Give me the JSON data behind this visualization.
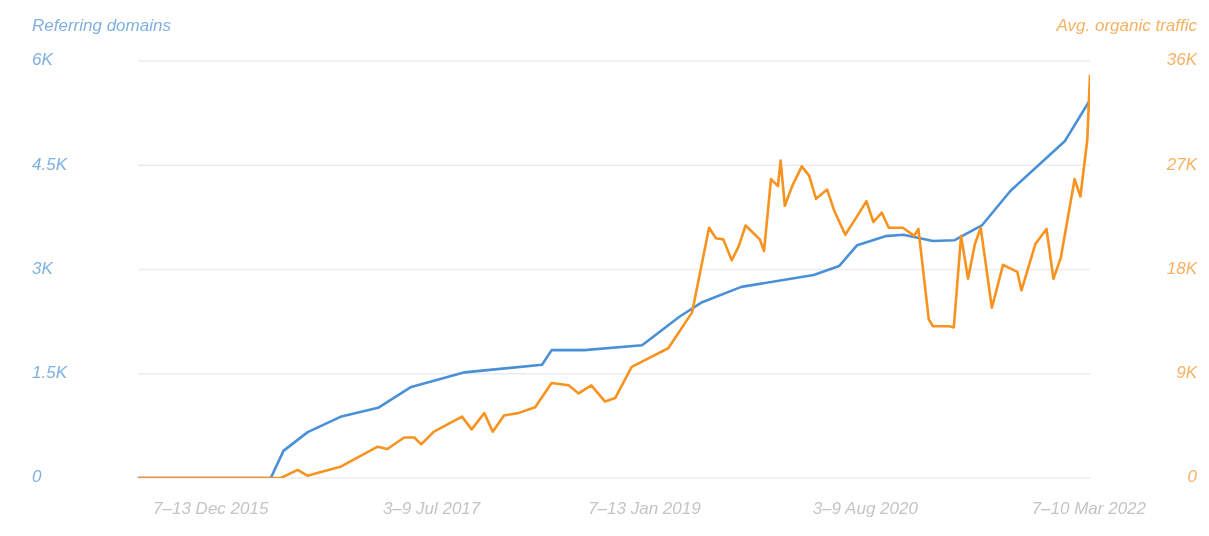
{
  "chart_data": {
    "type": "line",
    "ylabel": "Referring domains",
    "y2label": "Avg. organic traffic",
    "xlim": [
      "2015-06-01",
      "2022-03-10"
    ],
    "xticks": [
      {
        "value": "2015-12-07",
        "label": "7–13 Dec 2015"
      },
      {
        "value": "2017-07-03",
        "label": "3–9 Jul 2017"
      },
      {
        "value": "2019-01-07",
        "label": "7–13 Jan 2019"
      },
      {
        "value": "2020-08-03",
        "label": "3–9 Aug 2020"
      },
      {
        "value": "2022-03-07",
        "label": "7–10 Mar 2022"
      }
    ],
    "ylim": [
      0,
      6000
    ],
    "yticks": [
      0,
      {
        "value": 1500,
        "label": "1.5K"
      },
      {
        "value": 3000,
        "label": "3K"
      },
      {
        "value": 4500,
        "label": "4.5K"
      },
      {
        "value": 6000,
        "label": "6K"
      }
    ],
    "y2lim": [
      0,
      36000
    ],
    "y2ticks": [
      0,
      {
        "value": 9000,
        "label": "9K"
      },
      {
        "value": 18000,
        "label": "18K"
      },
      {
        "value": 27000,
        "label": "27K"
      },
      {
        "value": 36000,
        "label": "36K"
      }
    ],
    "grid": "y",
    "marker": "none",
    "line_style": "solid",
    "series": [
      {
        "color": "#4a90d9",
        "x": [
          "2015-06-01",
          "2016-05-11",
          "2016-06-13",
          "2016-08-15",
          "2016-11-08",
          "2017-02-14",
          "2017-05-11",
          "2017-09-27",
          "2018-04-16",
          "2018-05-11",
          "2018-08-04",
          "2019-01-01",
          "2019-04-08",
          "2019-06-06",
          "2019-09-16",
          "2020-03-22",
          "2020-05-27",
          "2020-07-13",
          "2020-09-24",
          "2020-11-10",
          "2021-01-26",
          "2021-03-22",
          "2021-06-03",
          "2021-08-15",
          "2022-01-04",
          "2022-03-10"
        ],
        "values": [
          0,
          0,
          390,
          660,
          880,
          1010,
          1310,
          1520,
          1630,
          1840,
          1840,
          1910,
          2320,
          2530,
          2750,
          2920,
          3050,
          3350,
          3480,
          3500,
          3410,
          3420,
          3640,
          4130,
          4850,
          5440
        ]
      },
      {
        "color": "#f7931e",
        "axis": "y2",
        "x": [
          "2015-06-01",
          "2016-06-06",
          "2016-07-20",
          "2016-08-14",
          "2016-11-10",
          "2017-02-13",
          "2017-03-10",
          "2017-04-23",
          "2017-05-19",
          "2017-06-06",
          "2017-07-09",
          "2017-09-20",
          "2017-10-15",
          "2017-11-17",
          "2017-12-09",
          "2018-01-07",
          "2018-02-13",
          "2018-03-29",
          "2018-05-11",
          "2018-06-24",
          "2018-07-20",
          "2018-08-22",
          "2018-09-27",
          "2018-10-23",
          "2018-12-05",
          "2019-03-10",
          "2019-05-11",
          "2019-05-26",
          "2019-06-24",
          "2019-07-12",
          "2019-07-31",
          "2019-08-22",
          "2019-09-09",
          "2019-09-27",
          "2019-11-03",
          "2019-11-14",
          "2019-12-02",
          "2019-12-20",
          "2019-12-27",
          "2020-01-07",
          "2020-01-26",
          "2020-02-20",
          "2020-03-10",
          "2020-03-28",
          "2020-04-26",
          "2020-05-14",
          "2020-06-12",
          "2020-07-11",
          "2020-08-06",
          "2020-08-24",
          "2020-09-15",
          "2020-10-03",
          "2020-11-09",
          "2020-12-08",
          "2020-12-19",
          "2021-01-15",
          "2021-01-26",
          "2021-03-10",
          "2021-03-21",
          "2021-04-09",
          "2021-04-27",
          "2021-05-15",
          "2021-05-30",
          "2021-06-28",
          "2021-07-27",
          "2021-09-02",
          "2021-09-13",
          "2021-10-19",
          "2021-11-17",
          "2021-12-05",
          "2021-12-24",
          "2022-01-29",
          "2022-02-13",
          "2022-03-03",
          "2022-03-10"
        ],
        "values": [
          0,
          0,
          700,
          200,
          1000,
          2700,
          2500,
          3500,
          3500,
          2900,
          4000,
          5300,
          4200,
          5600,
          4000,
          5400,
          5600,
          6100,
          8200,
          8000,
          7300,
          8000,
          6600,
          6900,
          9600,
          11200,
          14300,
          16800,
          21600,
          20700,
          20600,
          18800,
          20000,
          21800,
          20600,
          19600,
          25800,
          25200,
          27400,
          23500,
          25200,
          26900,
          26100,
          24100,
          24900,
          23100,
          21000,
          22500,
          23900,
          22100,
          22900,
          21600,
          21600,
          20900,
          21500,
          13700,
          13100,
          13100,
          13000,
          20900,
          17200,
          20200,
          21600,
          14700,
          18400,
          17800,
          16200,
          20200,
          21500,
          17200,
          19000,
          25800,
          24300,
          29200,
          34800
        ]
      }
    ]
  }
}
